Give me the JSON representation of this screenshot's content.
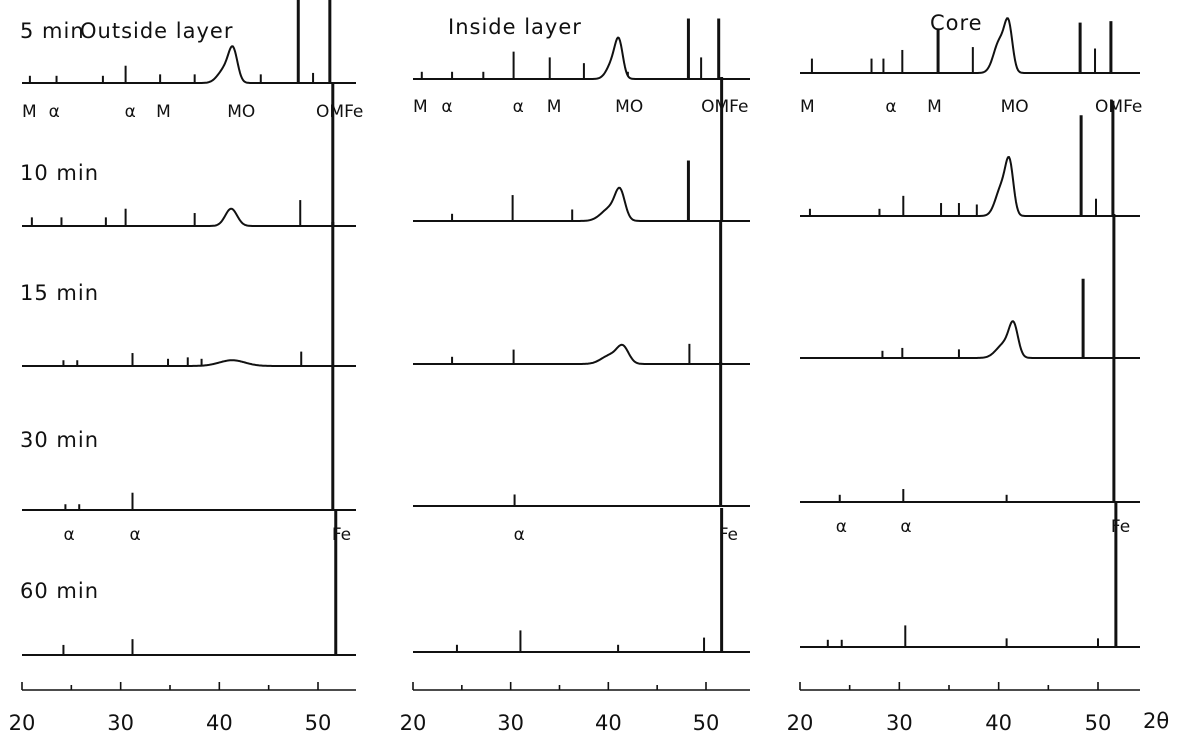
{
  "chart_data": {
    "type": "line",
    "description_units": "x = diffraction angle 2θ (deg); y = relative intensity 0-100",
    "axis": {
      "xlim": [
        20,
        54
      ],
      "ticks": [
        20,
        30,
        40,
        50
      ],
      "xlabel": "2θ"
    },
    "columns": [
      {
        "key": "outside",
        "title": "Outside layer",
        "panels": [
          {
            "time": "5 min",
            "phase_labels": [
              {
                "text": "M",
                "x": 20
              },
              {
                "text": "α",
                "x": 22.7
              },
              {
                "text": "α",
                "x": 30.4
              },
              {
                "text": "M",
                "x": 33.6
              },
              {
                "text": "MO",
                "x": 40.8
              },
              {
                "text": "OMFe",
                "x": 49.8
              }
            ],
            "sticks": [
              [
                20.8,
                5
              ],
              [
                23.5,
                5
              ],
              [
                28.2,
                5
              ],
              [
                30.5,
                12
              ],
              [
                34,
                6
              ],
              [
                37.5,
                6
              ],
              [
                44.2,
                6
              ],
              [
                48,
                66
              ],
              [
                49.5,
                7
              ],
              [
                51.2,
                79
              ]
            ],
            "humps": [
              [
                40.6,
                10,
                0.7
              ],
              [
                41.4,
                20,
                0.45
              ]
            ]
          },
          {
            "time": "10 min",
            "phase_labels": [],
            "sticks": [
              [
                21,
                6
              ],
              [
                24,
                6
              ],
              [
                28.5,
                6
              ],
              [
                30.5,
                12
              ],
              [
                37.5,
                9
              ],
              [
                48.2,
                18
              ],
              [
                51.5,
                100
              ]
            ],
            "humps": [
              [
                41.2,
                12,
                0.6
              ]
            ]
          },
          {
            "time": "15 min",
            "phase_labels": [],
            "sticks": [
              [
                24.2,
                4
              ],
              [
                25.6,
                4
              ],
              [
                31.2,
                9
              ],
              [
                34.8,
                5
              ],
              [
                36.8,
                6
              ],
              [
                38.2,
                5
              ],
              [
                48.3,
                10
              ],
              [
                51.5,
                100
              ]
            ],
            "humps": [
              [
                41.3,
                4,
                1.3
              ]
            ]
          },
          {
            "time": "30 min",
            "phase_labels": [
              {
                "text": "α",
                "x": 24.2
              },
              {
                "text": "α",
                "x": 30.9
              },
              {
                "text": "Fe",
                "x": 51.4
              }
            ],
            "sticks": [
              [
                24.4,
                4
              ],
              [
                25.8,
                4
              ],
              [
                31.2,
                12
              ],
              [
                51.5,
                100
              ]
            ],
            "humps": []
          },
          {
            "time": "60 min",
            "phase_labels": [],
            "sticks": [
              [
                24.2,
                7
              ],
              [
                31.2,
                11
              ],
              [
                51.8,
                100
              ]
            ],
            "humps": []
          }
        ]
      },
      {
        "key": "inside",
        "title": "Inside layer",
        "panels": [
          {
            "time": "",
            "phase_labels": [
              {
                "text": "M",
                "x": 20
              },
              {
                "text": "α",
                "x": 22.9
              },
              {
                "text": "α",
                "x": 30.2
              },
              {
                "text": "M",
                "x": 33.7
              },
              {
                "text": "MO",
                "x": 40.7
              },
              {
                "text": "OMFe",
                "x": 49.5
              }
            ],
            "sticks": [
              [
                20.9,
                5
              ],
              [
                24,
                5
              ],
              [
                27.2,
                5
              ],
              [
                30.3,
                19
              ],
              [
                34,
                15
              ],
              [
                37.5,
                11
              ],
              [
                42,
                5
              ],
              [
                48.2,
                42
              ],
              [
                49.5,
                15
              ],
              [
                51.3,
                42
              ]
            ],
            "humps": [
              [
                40.5,
                12,
                0.6
              ],
              [
                41.1,
                21,
                0.4
              ]
            ]
          },
          {
            "time": "",
            "phase_labels": [],
            "sticks": [
              [
                24,
                5
              ],
              [
                30.2,
                18
              ],
              [
                36.3,
                8
              ],
              [
                48.2,
                42
              ],
              [
                51.6,
                100
              ]
            ],
            "humps": [
              [
                40.2,
                9,
                0.9
              ],
              [
                41.2,
                18,
                0.5
              ]
            ]
          },
          {
            "time": "",
            "phase_labels": [],
            "sticks": [
              [
                24,
                5
              ],
              [
                30.3,
                10
              ],
              [
                48.3,
                14
              ],
              [
                51.5,
                100
              ]
            ],
            "humps": [
              [
                40.2,
                6,
                0.9
              ],
              [
                41.5,
                11,
                0.6
              ]
            ]
          },
          {
            "time": "",
            "phase_labels": [
              {
                "text": "α",
                "x": 30.3
              },
              {
                "text": "Fe",
                "x": 51.3
              }
            ],
            "sticks": [
              [
                30.4,
                8
              ],
              [
                51.5,
                100
              ]
            ],
            "humps": []
          },
          {
            "time": "",
            "phase_labels": [],
            "sticks": [
              [
                24.5,
                5
              ],
              [
                31,
                15
              ],
              [
                41,
                5
              ],
              [
                49.8,
                10
              ],
              [
                51.6,
                100
              ]
            ],
            "humps": []
          }
        ]
      },
      {
        "key": "core",
        "title": "Core",
        "panels": [
          {
            "time": "",
            "phase_labels": [
              {
                "text": "M",
                "x": 20
              },
              {
                "text": "α",
                "x": 28.6
              },
              {
                "text": "M",
                "x": 32.8
              },
              {
                "text": "MO",
                "x": 40.2
              },
              {
                "text": "OMFe",
                "x": 49.7
              }
            ],
            "sticks": [
              [
                21.2,
                10
              ],
              [
                27.2,
                10
              ],
              [
                28.4,
                10
              ],
              [
                30.3,
                16
              ],
              [
                33.9,
                31
              ],
              [
                37.4,
                18
              ],
              [
                48.2,
                35
              ],
              [
                49.7,
                17
              ],
              [
                51.3,
                36
              ]
            ],
            "humps": [
              [
                40.1,
                22,
                0.6
              ],
              [
                41,
                30,
                0.4
              ]
            ]
          },
          {
            "time": "",
            "phase_labels": [],
            "sticks": [
              [
                21,
                5
              ],
              [
                28,
                5
              ],
              [
                30.4,
                14
              ],
              [
                34.2,
                9
              ],
              [
                36,
                9
              ],
              [
                37.8,
                8
              ],
              [
                48.3,
                70
              ],
              [
                49.8,
                12
              ],
              [
                51.5,
                80
              ]
            ],
            "humps": [
              [
                40.3,
                20,
                0.6
              ],
              [
                41.1,
                32,
                0.4
              ]
            ]
          },
          {
            "time": "",
            "phase_labels": [],
            "sticks": [
              [
                28.3,
                5
              ],
              [
                30.3,
                7
              ],
              [
                36,
                6
              ],
              [
                48.5,
                55
              ],
              [
                51.6,
                100
              ]
            ],
            "humps": [
              [
                40.6,
                10,
                0.8
              ],
              [
                41.5,
                20,
                0.45
              ]
            ]
          },
          {
            "time": "",
            "phase_labels": [
              {
                "text": "α",
                "x": 23.6
              },
              {
                "text": "α",
                "x": 30.1
              },
              {
                "text": "Fe",
                "x": 51.3
              }
            ],
            "sticks": [
              [
                24,
                5
              ],
              [
                30.4,
                9
              ],
              [
                40.8,
                5
              ],
              [
                51.6,
                100
              ]
            ],
            "humps": []
          },
          {
            "time": "",
            "phase_labels": [],
            "sticks": [
              [
                22.8,
                5
              ],
              [
                24.2,
                5
              ],
              [
                30.6,
                15
              ],
              [
                40.8,
                6
              ],
              [
                50,
                6
              ],
              [
                51.8,
                100
              ]
            ],
            "humps": []
          }
        ]
      }
    ]
  }
}
